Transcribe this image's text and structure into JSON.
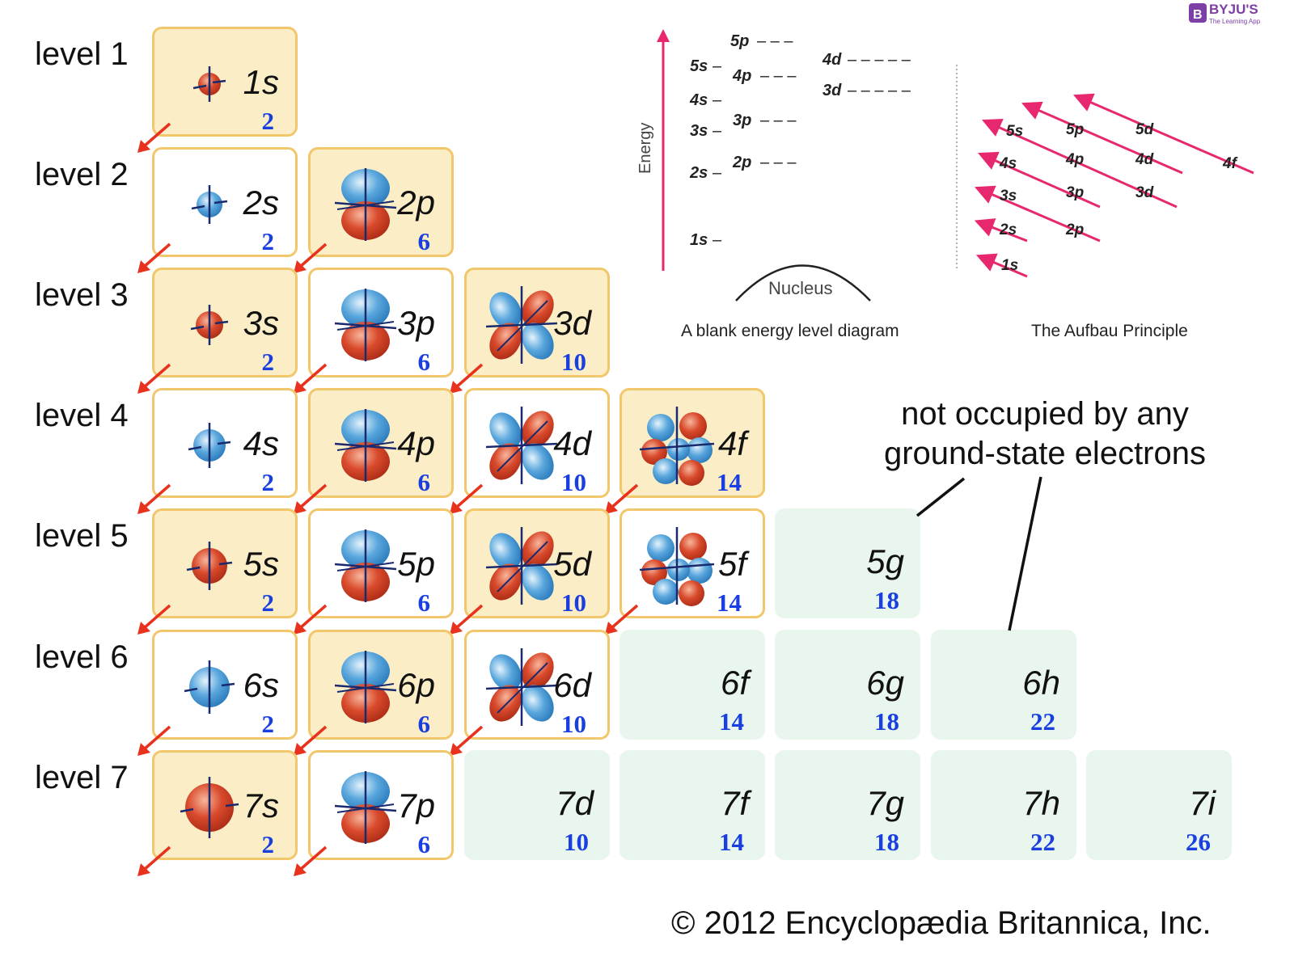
{
  "levels": [
    "level 1",
    "level 2",
    "level 3",
    "level 4",
    "level 5",
    "level 6",
    "level 7"
  ],
  "cells": [
    {
      "name": "1s",
      "cap": "2",
      "row": 0,
      "col": 0,
      "style": "yellow",
      "orb": "s",
      "tint": "red"
    },
    {
      "name": "2s",
      "cap": "2",
      "row": 1,
      "col": 0,
      "style": "white",
      "orb": "s",
      "tint": "blue"
    },
    {
      "name": "2p",
      "cap": "6",
      "row": 1,
      "col": 1,
      "style": "yellow",
      "orb": "p"
    },
    {
      "name": "3s",
      "cap": "2",
      "row": 2,
      "col": 0,
      "style": "yellow",
      "orb": "s",
      "tint": "red"
    },
    {
      "name": "3p",
      "cap": "6",
      "row": 2,
      "col": 1,
      "style": "white",
      "orb": "p"
    },
    {
      "name": "3d",
      "cap": "10",
      "row": 2,
      "col": 2,
      "style": "yellow",
      "orb": "d"
    },
    {
      "name": "4s",
      "cap": "2",
      "row": 3,
      "col": 0,
      "style": "white",
      "orb": "s",
      "tint": "blue"
    },
    {
      "name": "4p",
      "cap": "6",
      "row": 3,
      "col": 1,
      "style": "yellow",
      "orb": "p"
    },
    {
      "name": "4d",
      "cap": "10",
      "row": 3,
      "col": 2,
      "style": "white",
      "orb": "d"
    },
    {
      "name": "4f",
      "cap": "14",
      "row": 3,
      "col": 3,
      "style": "yellow",
      "orb": "f"
    },
    {
      "name": "5s",
      "cap": "2",
      "row": 4,
      "col": 0,
      "style": "yellow",
      "orb": "s",
      "tint": "red"
    },
    {
      "name": "5p",
      "cap": "6",
      "row": 4,
      "col": 1,
      "style": "white",
      "orb": "p"
    },
    {
      "name": "5d",
      "cap": "10",
      "row": 4,
      "col": 2,
      "style": "yellow",
      "orb": "d"
    },
    {
      "name": "5f",
      "cap": "14",
      "row": 4,
      "col": 3,
      "style": "white",
      "orb": "f"
    },
    {
      "name": "5g",
      "cap": "18",
      "row": 4,
      "col": 4,
      "style": "green",
      "orb": "none"
    },
    {
      "name": "6s",
      "cap": "2",
      "row": 5,
      "col": 0,
      "style": "white",
      "orb": "s",
      "tint": "blue"
    },
    {
      "name": "6p",
      "cap": "6",
      "row": 5,
      "col": 1,
      "style": "yellow",
      "orb": "p"
    },
    {
      "name": "6d",
      "cap": "10",
      "row": 5,
      "col": 2,
      "style": "white",
      "orb": "d"
    },
    {
      "name": "6f",
      "cap": "14",
      "row": 5,
      "col": 3,
      "style": "green",
      "orb": "none"
    },
    {
      "name": "6g",
      "cap": "18",
      "row": 5,
      "col": 4,
      "style": "green",
      "orb": "none"
    },
    {
      "name": "6h",
      "cap": "22",
      "row": 5,
      "col": 5,
      "style": "green",
      "orb": "none"
    },
    {
      "name": "7s",
      "cap": "2",
      "row": 6,
      "col": 0,
      "style": "yellow",
      "orb": "s",
      "tint": "red"
    },
    {
      "name": "7p",
      "cap": "6",
      "row": 6,
      "col": 1,
      "style": "white",
      "orb": "p"
    },
    {
      "name": "7d",
      "cap": "10",
      "row": 6,
      "col": 2,
      "style": "green",
      "orb": "none"
    },
    {
      "name": "7f",
      "cap": "14",
      "row": 6,
      "col": 3,
      "style": "green",
      "orb": "none"
    },
    {
      "name": "7g",
      "cap": "18",
      "row": 6,
      "col": 4,
      "style": "green",
      "orb": "none"
    },
    {
      "name": "7h",
      "cap": "22",
      "row": 6,
      "col": 5,
      "style": "green",
      "orb": "none"
    },
    {
      "name": "7i",
      "cap": "26",
      "row": 6,
      "col": 6,
      "style": "green",
      "orb": "none"
    }
  ],
  "note": "not occupied by any ground-state electrons",
  "copyright": "© 2012 Encyclopædia Britannica, Inc.",
  "logo": {
    "name": "BYJU'S",
    "sub": "The Learning App",
    "mark": "B"
  },
  "energy_diagram": {
    "axis_label": "Energy",
    "caption": "A blank energy level diagram",
    "nucleus": "Nucleus",
    "levels": [
      "1s",
      "2s",
      "2p",
      "3s",
      "3p",
      "4s",
      "4p",
      "5s",
      "5p",
      "3d",
      "4d"
    ]
  },
  "aufbau": {
    "caption": "The Aufbau Principle",
    "labels": [
      "1s",
      "2s",
      "2p",
      "3s",
      "3p",
      "3d",
      "4s",
      "4p",
      "4d",
      "4f",
      "5s",
      "5p",
      "5d"
    ]
  },
  "colors": {
    "arrow": "#e8321e",
    "capacity": "#1a3fe0",
    "aufbau": "#e8286e",
    "energy_arrow": "#e8286e"
  }
}
